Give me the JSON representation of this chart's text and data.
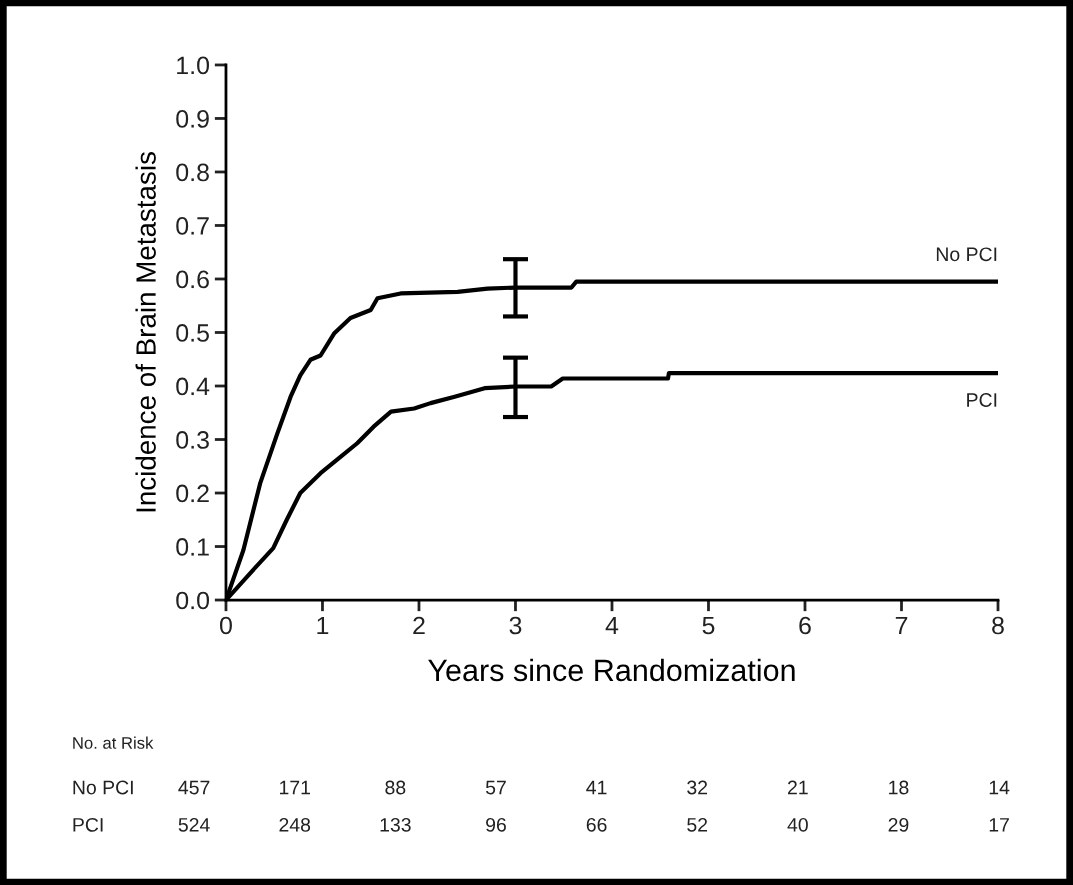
{
  "chart_data": [
    {
      "type": "line",
      "xlabel": "Years since Randomization",
      "ylabel": "Incidence of Brain Metastasis",
      "xlim": [
        0,
        8
      ],
      "xticks": [
        0,
        1,
        2,
        3,
        4,
        5,
        6,
        7,
        8
      ],
      "ylim": [
        0,
        1.0
      ],
      "yticks": [
        {
          "value": 0,
          "label": "0.0"
        },
        0.1,
        0.2,
        0.3,
        0.4,
        0.5,
        0.6,
        0.7,
        0.8,
        0.9,
        {
          "value": 1,
          "label": "1.0"
        }
      ],
      "grid": false,
      "legend": false,
      "marker": "none",
      "line_style": "solid",
      "series": [
        {
          "name": "No PCI",
          "color": "#000000",
          "x": [
            0,
            0.18,
            0.354,
            0.53,
            0.67,
            0.77,
            0.875,
            0.98,
            1.12,
            1.29,
            1.5,
            1.57,
            1.81,
            2.4,
            2.71,
            3,
            3.58,
            3.63,
            8
          ],
          "values": [
            0,
            0.093,
            0.218,
            0.31,
            0.38,
            0.42,
            0.449,
            0.457,
            0.498,
            0.527,
            0.542,
            0.564,
            0.573,
            0.576,
            0.582,
            0.584,
            0.584,
            0.595,
            0.595
          ],
          "errors": [
            null,
            null,
            null,
            null,
            null,
            null,
            null,
            null,
            null,
            null,
            null,
            null,
            null,
            null,
            null,
            [
              0.53,
              0.637
            ],
            null,
            null,
            null
          ]
        },
        {
          "name": "PCI",
          "color": "#000000",
          "x": [
            0,
            0.25,
            0.49,
            0.63,
            0.77,
            0.98,
            1.19,
            1.36,
            1.53,
            1.71,
            1.95,
            2.12,
            2.37,
            2.68,
            3,
            3.37,
            3.49,
            4.58,
            4.59,
            8
          ],
          "values": [
            0,
            0.05,
            0.097,
            0.15,
            0.2,
            0.237,
            0.268,
            0.293,
            0.324,
            0.352,
            0.358,
            0.368,
            0.38,
            0.396,
            0.399,
            0.399,
            0.414,
            0.414,
            0.424,
            0.424
          ],
          "errors": [
            null,
            null,
            null,
            null,
            null,
            null,
            null,
            null,
            null,
            null,
            null,
            null,
            null,
            null,
            [
              0.342,
              0.453
            ],
            null,
            null,
            null,
            null,
            null
          ]
        }
      ]
    },
    {
      "type": "heatmap",
      "title": "No. at Risk",
      "categories": [
        null,
        null,
        null,
        null,
        null,
        null,
        null,
        null,
        null
      ],
      "y_categories": [
        "No PCI",
        "PCI"
      ],
      "data_labels": true,
      "cells": [
        [
          457,
          171,
          88,
          57,
          41,
          32,
          21,
          18,
          14
        ],
        [
          524,
          248,
          133,
          96,
          66,
          52,
          40,
          29,
          17
        ]
      ]
    }
  ]
}
